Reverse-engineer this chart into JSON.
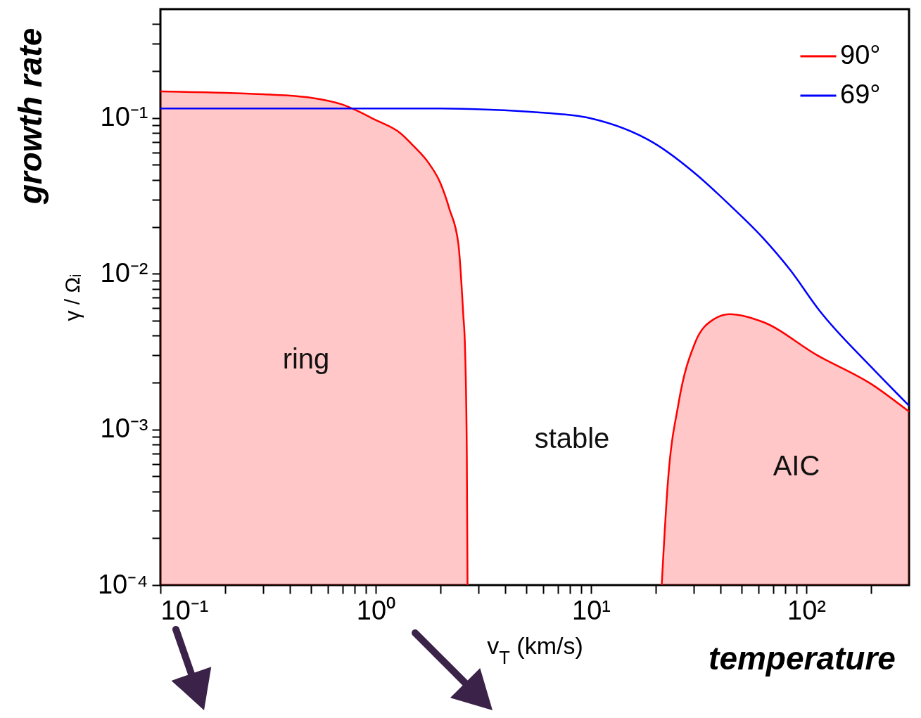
{
  "chart_data": {
    "type": "line",
    "xlabel": "v$_{T}$ (km/s)",
    "ylabel": "γ / Ωᵢ",
    "log": "xy",
    "legend": "top right",
    "grid": false,
    "xlim": [
      0.1,
      300
    ],
    "ylim": [
      0.0001,
      0.5
    ],
    "xticks": [
      {
        "value": 0.1,
        "label": "10⁻¹"
      },
      {
        "value": 0.2,
        "label": null
      },
      {
        "value": 0.3,
        "label": null
      },
      {
        "value": 0.4,
        "label": null
      },
      {
        "value": 0.5,
        "label": null
      },
      {
        "value": 0.6,
        "label": null
      },
      {
        "value": 0.7,
        "label": null
      },
      {
        "value": 0.8,
        "label": null
      },
      {
        "value": 0.9,
        "label": null
      },
      {
        "value": 1,
        "label": "10⁰"
      },
      {
        "value": 2,
        "label": null
      },
      {
        "value": 3,
        "label": null
      },
      {
        "value": 4,
        "label": null
      },
      {
        "value": 5,
        "label": null
      },
      {
        "value": 6,
        "label": null
      },
      {
        "value": 7,
        "label": null
      },
      {
        "value": 8,
        "label": null
      },
      {
        "value": 9,
        "label": null
      },
      {
        "value": 10,
        "label": "10¹"
      },
      {
        "value": 20,
        "label": null
      },
      {
        "value": 30,
        "label": null
      },
      {
        "value": 40,
        "label": null
      },
      {
        "value": 50,
        "label": null
      },
      {
        "value": 60,
        "label": null
      },
      {
        "value": 70,
        "label": null
      },
      {
        "value": 80,
        "label": null
      },
      {
        "value": 90,
        "label": null
      },
      {
        "value": 100,
        "label": "10²"
      },
      {
        "value": 200,
        "label": null
      }
    ],
    "yticks": [
      {
        "value": 0.0001,
        "label": "10⁻⁴"
      },
      {
        "value": 0.0002,
        "label": null
      },
      {
        "value": 0.0003,
        "label": null
      },
      {
        "value": 0.0004,
        "label": null
      },
      {
        "value": 0.0005,
        "label": null
      },
      {
        "value": 0.0006,
        "label": null
      },
      {
        "value": 0.0007,
        "label": null
      },
      {
        "value": 0.0008,
        "label": null
      },
      {
        "value": 0.0009,
        "label": null
      },
      {
        "value": 0.001,
        "label": "10⁻³"
      },
      {
        "value": 0.002,
        "label": null
      },
      {
        "value": 0.003,
        "label": null
      },
      {
        "value": 0.004,
        "label": null
      },
      {
        "value": 0.005,
        "label": null
      },
      {
        "value": 0.006,
        "label": null
      },
      {
        "value": 0.007,
        "label": null
      },
      {
        "value": 0.008,
        "label": null
      },
      {
        "value": 0.009,
        "label": null
      },
      {
        "value": 0.01,
        "label": "10⁻²"
      },
      {
        "value": 0.02,
        "label": null
      },
      {
        "value": 0.03,
        "label": null
      },
      {
        "value": 0.04,
        "label": null
      },
      {
        "value": 0.05,
        "label": null
      },
      {
        "value": 0.06,
        "label": null
      },
      {
        "value": 0.07,
        "label": null
      },
      {
        "value": 0.08,
        "label": null
      },
      {
        "value": 0.09,
        "label": null
      },
      {
        "value": 0.1,
        "label": "10⁻¹"
      },
      {
        "value": 0.2,
        "label": null
      },
      {
        "value": 0.3,
        "label": null
      },
      {
        "value": 0.4,
        "label": null
      }
    ],
    "series": [
      {
        "name": "90°",
        "type": "area",
        "color": "#ff0000",
        "x": [
          0.1,
          0.2,
          0.3,
          0.5,
          0.7,
          1,
          1.3,
          1.5,
          1.75,
          2,
          2.2,
          2.42,
          2.55,
          2.6,
          2.65,
          2.67,
          10,
          21.3,
          22.7,
          25.5,
          30.3,
          37.2,
          44,
          62.8,
          112,
          201,
          300
        ],
        "values": [
          0.148,
          0.145,
          0.142,
          0.135,
          0.122,
          0.097,
          0.08,
          0.066,
          0.052,
          0.038,
          0.026,
          0.0156,
          0.0055,
          0.0033,
          0.00066,
          0.0001,
          null,
          0.0001,
          0.00044,
          0.00147,
          0.00355,
          0.0051,
          0.0055,
          0.0049,
          0.003,
          0.00195,
          0.0013
        ]
      },
      {
        "name": "69°",
        "color": "#0000ff",
        "x": [
          0.1,
          1,
          2,
          3.4,
          6,
          9.8,
          19.6,
          31.3,
          44.2,
          62.8,
          84,
          115,
          201,
          300
        ],
        "values": [
          0.115,
          0.115,
          0.115,
          0.113,
          0.108,
          0.1,
          0.069,
          0.0426,
          0.0275,
          0.017,
          0.0106,
          0.0058,
          0.0025,
          0.00142
        ]
      }
    ],
    "annotations": [
      "growth rate",
      "temperature",
      "ring",
      "stable",
      "AIC"
    ]
  }
}
